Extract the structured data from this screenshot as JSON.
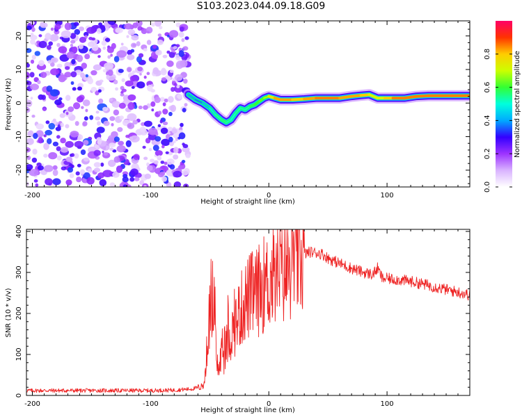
{
  "figure": {
    "title": "S103.2023.044.09.18.G09"
  },
  "chart_data": [
    {
      "type": "heatmap",
      "xlabel": "Height of straight line (km)",
      "ylabel": "Frequency (Hz)",
      "xlim": [
        -205,
        170
      ],
      "ylim": [
        -25,
        24.5
      ],
      "x_ticks": [
        -200,
        -100,
        0,
        100
      ],
      "y_ticks": [
        -20,
        -10,
        0,
        10,
        20
      ],
      "colorbar": {
        "label": "Normalized spectral amplitude",
        "range": [
          0.0,
          1.0
        ],
        "ticks": [
          0.0,
          0.2,
          0.4,
          0.6,
          0.8
        ],
        "colormap": [
          "#ffffff",
          "#d9b3ff",
          "#9d33ff",
          "#3300ff",
          "#00aaff",
          "#00ffdd",
          "#33ff33",
          "#ccff00",
          "#ffcc00",
          "#ff3300",
          "#ff0066"
        ]
      },
      "noise_region": {
        "x_range": [
          -205,
          -68
        ],
        "freq_range": [
          -25,
          24.5
        ],
        "amplitude_range": [
          0.05,
          0.35
        ]
      },
      "ridge": [
        {
          "x": -68,
          "f": 2.5,
          "a": 0.45
        },
        {
          "x": -62,
          "f": 1.0,
          "a": 0.35
        },
        {
          "x": -56,
          "f": 0.0,
          "a": 0.4
        },
        {
          "x": -50,
          "f": -1.5,
          "a": 0.45
        },
        {
          "x": -45,
          "f": -3.5,
          "a": 0.5
        },
        {
          "x": -40,
          "f": -5.0,
          "a": 0.55
        },
        {
          "x": -36,
          "f": -5.8,
          "a": 0.55
        },
        {
          "x": -32,
          "f": -5.0,
          "a": 0.5
        },
        {
          "x": -28,
          "f": -3.0,
          "a": 0.5
        },
        {
          "x": -24,
          "f": -1.5,
          "a": 0.55
        },
        {
          "x": -20,
          "f": -2.0,
          "a": 0.5
        },
        {
          "x": -16,
          "f": -1.0,
          "a": 0.55
        },
        {
          "x": -12,
          "f": -0.5,
          "a": 0.6
        },
        {
          "x": -8,
          "f": 0.5,
          "a": 0.6
        },
        {
          "x": -4,
          "f": 1.5,
          "a": 0.65
        },
        {
          "x": 0,
          "f": 2.0,
          "a": 0.7
        },
        {
          "x": 5,
          "f": 1.5,
          "a": 0.8
        },
        {
          "x": 10,
          "f": 1.0,
          "a": 0.85
        },
        {
          "x": 20,
          "f": 1.0,
          "a": 0.8
        },
        {
          "x": 30,
          "f": 1.2,
          "a": 0.8
        },
        {
          "x": 40,
          "f": 1.5,
          "a": 0.85
        },
        {
          "x": 50,
          "f": 1.5,
          "a": 0.85
        },
        {
          "x": 60,
          "f": 1.5,
          "a": 0.85
        },
        {
          "x": 70,
          "f": 2.0,
          "a": 0.8
        },
        {
          "x": 78,
          "f": 2.3,
          "a": 0.85
        },
        {
          "x": 85,
          "f": 2.5,
          "a": 0.75
        },
        {
          "x": 92,
          "f": 1.5,
          "a": 0.7
        },
        {
          "x": 98,
          "f": 1.5,
          "a": 0.75
        },
        {
          "x": 105,
          "f": 1.5,
          "a": 0.85
        },
        {
          "x": 115,
          "f": 1.5,
          "a": 0.85
        },
        {
          "x": 125,
          "f": 2.0,
          "a": 0.85
        },
        {
          "x": 135,
          "f": 2.2,
          "a": 0.85
        },
        {
          "x": 145,
          "f": 2.2,
          "a": 0.85
        },
        {
          "x": 155,
          "f": 2.2,
          "a": 0.85
        },
        {
          "x": 170,
          "f": 2.2,
          "a": 0.85
        }
      ]
    },
    {
      "type": "line",
      "xlabel": "Height of straight line (km)",
      "ylabel": "SNR (10 * v/v)",
      "xlim": [
        -205,
        170
      ],
      "ylim": [
        0,
        405
      ],
      "x_ticks": [
        -200,
        -100,
        0,
        100
      ],
      "y_ticks": [
        0,
        100,
        200,
        300,
        400
      ],
      "series": [
        {
          "color": "#ee2222",
          "x": [
            -205,
            -180,
            -150,
            -120,
            -100,
            -80,
            -65,
            -55,
            -52,
            -50,
            -48,
            -46,
            -44,
            -42,
            -40,
            -38,
            -35,
            -30,
            -25,
            -20,
            -15,
            -10,
            -5,
            0,
            5,
            10,
            15,
            20,
            25,
            30,
            35,
            40,
            45,
            50,
            55,
            60,
            70,
            80,
            88,
            92,
            96,
            100,
            110,
            120,
            130,
            140,
            150,
            160,
            170
          ],
          "y": [
            12,
            12,
            12,
            12,
            12,
            13,
            16,
            22,
            120,
            200,
            260,
            170,
            80,
            60,
            110,
            90,
            130,
            160,
            200,
            230,
            245,
            250,
            270,
            275,
            290,
            300,
            305,
            320,
            335,
            345,
            350,
            348,
            345,
            335,
            328,
            322,
            310,
            300,
            295,
            310,
            285,
            285,
            282,
            278,
            272,
            265,
            258,
            252,
            245
          ]
        }
      ]
    }
  ]
}
